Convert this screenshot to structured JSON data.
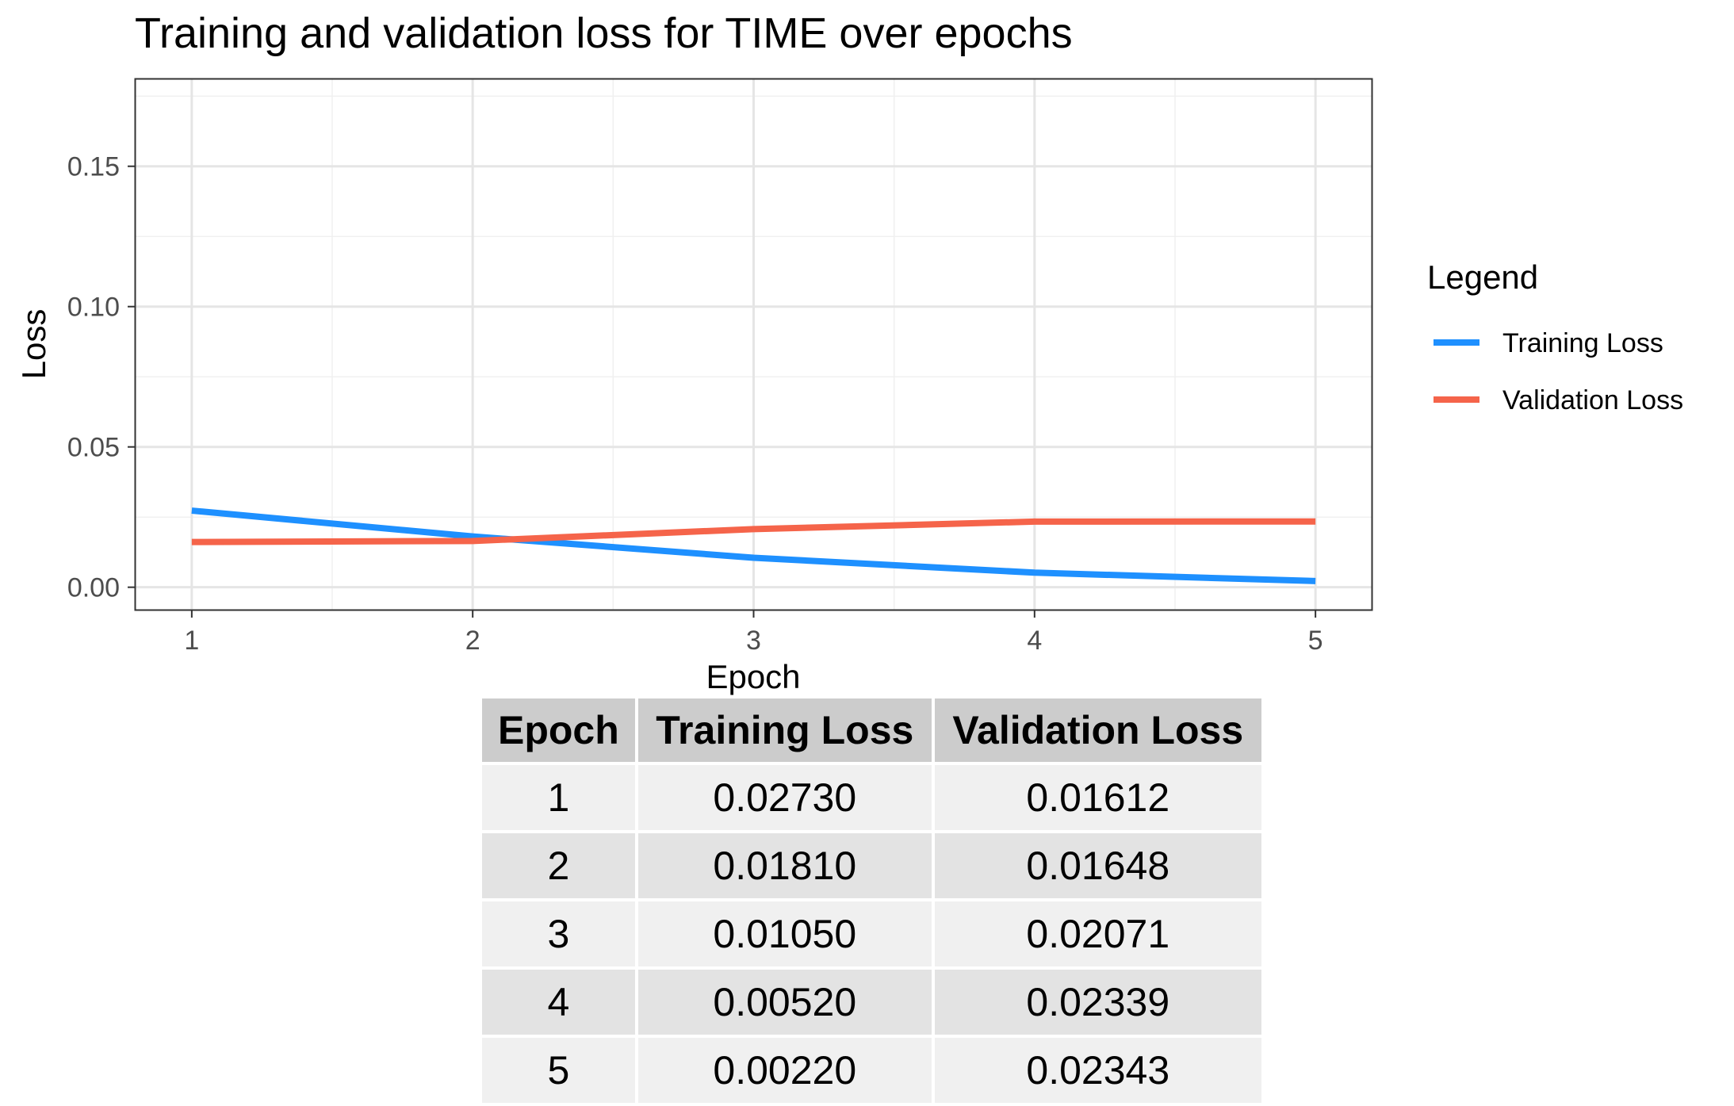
{
  "chart_data": {
    "type": "line",
    "title": "Training and validation loss for TIME over epochs",
    "xlabel": "Epoch",
    "ylabel": "Loss",
    "x": [
      1,
      2,
      3,
      4,
      5
    ],
    "x_ticks": [
      "1",
      "2",
      "3",
      "4",
      "5"
    ],
    "y_ticks": [
      "0.00",
      "0.05",
      "0.10",
      "0.15"
    ],
    "xlim": [
      0.8,
      5.2
    ],
    "ylim": [
      -0.008,
      0.181
    ],
    "grid": true,
    "legend": {
      "title": "Legend",
      "position": "right"
    },
    "series": [
      {
        "name": "Training Loss",
        "color": "#1e90ff",
        "values": [
          0.0273,
          0.0181,
          0.0105,
          0.0052,
          0.0022
        ]
      },
      {
        "name": "Validation Loss",
        "color": "#f5644a",
        "values": [
          0.01612,
          0.01648,
          0.02071,
          0.02339,
          0.02343
        ]
      }
    ]
  },
  "table": {
    "headers": [
      "Epoch",
      "Training Loss",
      "Validation Loss"
    ],
    "rows": [
      [
        "1",
        "0.02730",
        "0.01612"
      ],
      [
        "2",
        "0.01810",
        "0.01648"
      ],
      [
        "3",
        "0.01050",
        "0.02071"
      ],
      [
        "4",
        "0.00520",
        "0.02339"
      ],
      [
        "5",
        "0.00220",
        "0.02343"
      ]
    ]
  }
}
